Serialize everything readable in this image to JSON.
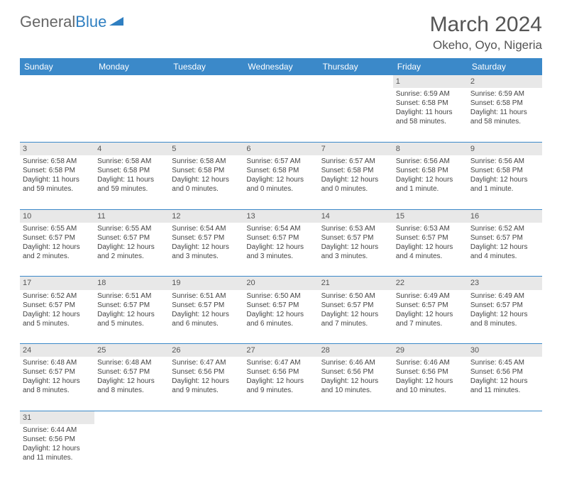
{
  "logo": {
    "general": "General",
    "blue": "Blue"
  },
  "title": "March 2024",
  "location": "Okeho, Oyo, Nigeria",
  "colors": {
    "header_bg": "#3b89c9",
    "header_text": "#ffffff",
    "daynum_bg": "#e8e8e8",
    "text": "#444444",
    "divider": "#3b89c9"
  },
  "weekdays": [
    "Sunday",
    "Monday",
    "Tuesday",
    "Wednesday",
    "Thursday",
    "Friday",
    "Saturday"
  ],
  "weeks": [
    [
      null,
      null,
      null,
      null,
      null,
      {
        "n": "1",
        "sr": "6:59 AM",
        "ss": "6:58 PM",
        "dl": "11 hours and 58 minutes."
      },
      {
        "n": "2",
        "sr": "6:59 AM",
        "ss": "6:58 PM",
        "dl": "11 hours and 58 minutes."
      }
    ],
    [
      {
        "n": "3",
        "sr": "6:58 AM",
        "ss": "6:58 PM",
        "dl": "11 hours and 59 minutes."
      },
      {
        "n": "4",
        "sr": "6:58 AM",
        "ss": "6:58 PM",
        "dl": "11 hours and 59 minutes."
      },
      {
        "n": "5",
        "sr": "6:58 AM",
        "ss": "6:58 PM",
        "dl": "12 hours and 0 minutes."
      },
      {
        "n": "6",
        "sr": "6:57 AM",
        "ss": "6:58 PM",
        "dl": "12 hours and 0 minutes."
      },
      {
        "n": "7",
        "sr": "6:57 AM",
        "ss": "6:58 PM",
        "dl": "12 hours and 0 minutes."
      },
      {
        "n": "8",
        "sr": "6:56 AM",
        "ss": "6:58 PM",
        "dl": "12 hours and 1 minute."
      },
      {
        "n": "9",
        "sr": "6:56 AM",
        "ss": "6:58 PM",
        "dl": "12 hours and 1 minute."
      }
    ],
    [
      {
        "n": "10",
        "sr": "6:55 AM",
        "ss": "6:57 PM",
        "dl": "12 hours and 2 minutes."
      },
      {
        "n": "11",
        "sr": "6:55 AM",
        "ss": "6:57 PM",
        "dl": "12 hours and 2 minutes."
      },
      {
        "n": "12",
        "sr": "6:54 AM",
        "ss": "6:57 PM",
        "dl": "12 hours and 3 minutes."
      },
      {
        "n": "13",
        "sr": "6:54 AM",
        "ss": "6:57 PM",
        "dl": "12 hours and 3 minutes."
      },
      {
        "n": "14",
        "sr": "6:53 AM",
        "ss": "6:57 PM",
        "dl": "12 hours and 3 minutes."
      },
      {
        "n": "15",
        "sr": "6:53 AM",
        "ss": "6:57 PM",
        "dl": "12 hours and 4 minutes."
      },
      {
        "n": "16",
        "sr": "6:52 AM",
        "ss": "6:57 PM",
        "dl": "12 hours and 4 minutes."
      }
    ],
    [
      {
        "n": "17",
        "sr": "6:52 AM",
        "ss": "6:57 PM",
        "dl": "12 hours and 5 minutes."
      },
      {
        "n": "18",
        "sr": "6:51 AM",
        "ss": "6:57 PM",
        "dl": "12 hours and 5 minutes."
      },
      {
        "n": "19",
        "sr": "6:51 AM",
        "ss": "6:57 PM",
        "dl": "12 hours and 6 minutes."
      },
      {
        "n": "20",
        "sr": "6:50 AM",
        "ss": "6:57 PM",
        "dl": "12 hours and 6 minutes."
      },
      {
        "n": "21",
        "sr": "6:50 AM",
        "ss": "6:57 PM",
        "dl": "12 hours and 7 minutes."
      },
      {
        "n": "22",
        "sr": "6:49 AM",
        "ss": "6:57 PM",
        "dl": "12 hours and 7 minutes."
      },
      {
        "n": "23",
        "sr": "6:49 AM",
        "ss": "6:57 PM",
        "dl": "12 hours and 8 minutes."
      }
    ],
    [
      {
        "n": "24",
        "sr": "6:48 AM",
        "ss": "6:57 PM",
        "dl": "12 hours and 8 minutes."
      },
      {
        "n": "25",
        "sr": "6:48 AM",
        "ss": "6:57 PM",
        "dl": "12 hours and 8 minutes."
      },
      {
        "n": "26",
        "sr": "6:47 AM",
        "ss": "6:56 PM",
        "dl": "12 hours and 9 minutes."
      },
      {
        "n": "27",
        "sr": "6:47 AM",
        "ss": "6:56 PM",
        "dl": "12 hours and 9 minutes."
      },
      {
        "n": "28",
        "sr": "6:46 AM",
        "ss": "6:56 PM",
        "dl": "12 hours and 10 minutes."
      },
      {
        "n": "29",
        "sr": "6:46 AM",
        "ss": "6:56 PM",
        "dl": "12 hours and 10 minutes."
      },
      {
        "n": "30",
        "sr": "6:45 AM",
        "ss": "6:56 PM",
        "dl": "12 hours and 11 minutes."
      }
    ],
    [
      {
        "n": "31",
        "sr": "6:44 AM",
        "ss": "6:56 PM",
        "dl": "12 hours and 11 minutes."
      },
      null,
      null,
      null,
      null,
      null,
      null
    ]
  ],
  "labels": {
    "sunrise": "Sunrise:",
    "sunset": "Sunset:",
    "daylight": "Daylight:"
  }
}
